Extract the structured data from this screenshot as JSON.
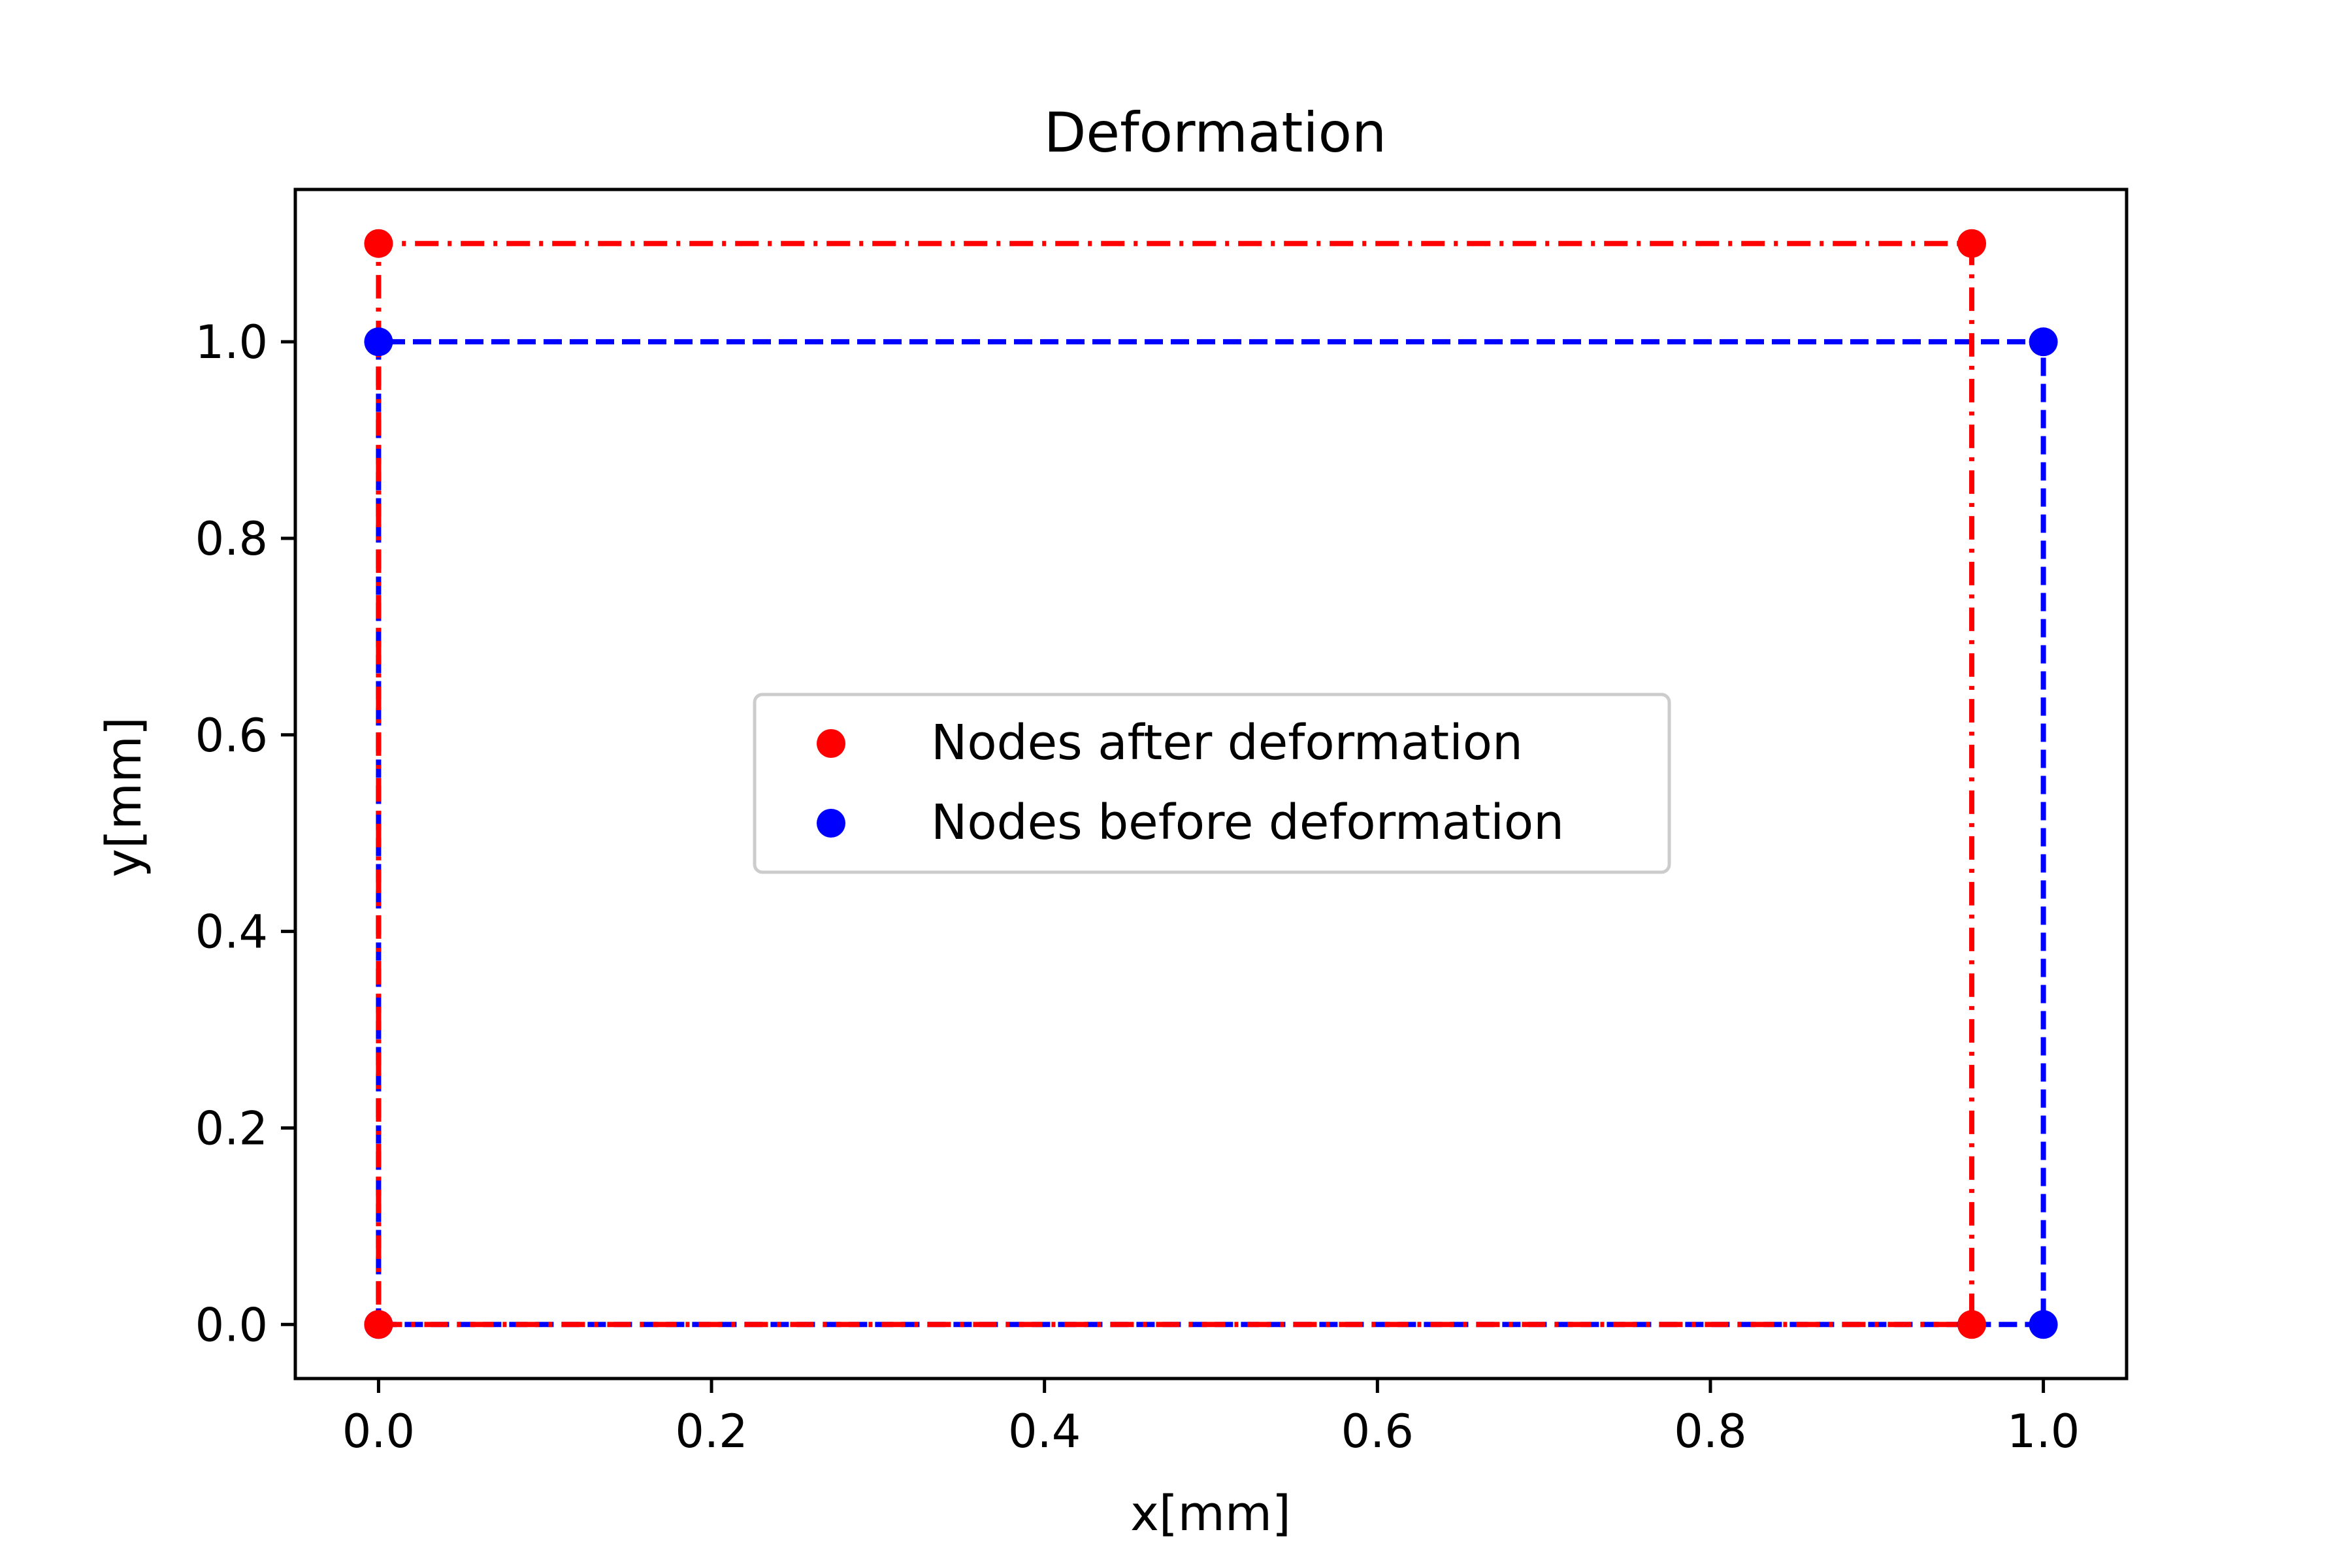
{
  "chart_data": {
    "type": "scatter",
    "title": "Deformation",
    "xlabel": "x[mm]",
    "ylabel": "y[mm]",
    "xlim": [
      -0.05,
      1.05
    ],
    "ylim": [
      -0.055,
      1.155
    ],
    "xticks": [
      "0.0",
      "0.2",
      "0.4",
      "0.6",
      "0.8",
      "1.0"
    ],
    "yticks": [
      "0.0",
      "0.2",
      "0.4",
      "0.6",
      "0.8",
      "1.0"
    ],
    "grid": false,
    "legend_position": "center",
    "series": [
      {
        "name": "Nodes after deformation",
        "color": "#ff0000",
        "line_style": "dashdot",
        "points": [
          [
            0,
            0
          ],
          [
            0.957,
            0
          ],
          [
            0.957,
            1.1
          ],
          [
            0,
            1.1
          ]
        ]
      },
      {
        "name": "Nodes before deformation",
        "color": "#0000ff",
        "line_style": "dashed",
        "points": [
          [
            0,
            0
          ],
          [
            1.0,
            0
          ],
          [
            1.0,
            1.0
          ],
          [
            0,
            1.0
          ]
        ]
      }
    ]
  }
}
